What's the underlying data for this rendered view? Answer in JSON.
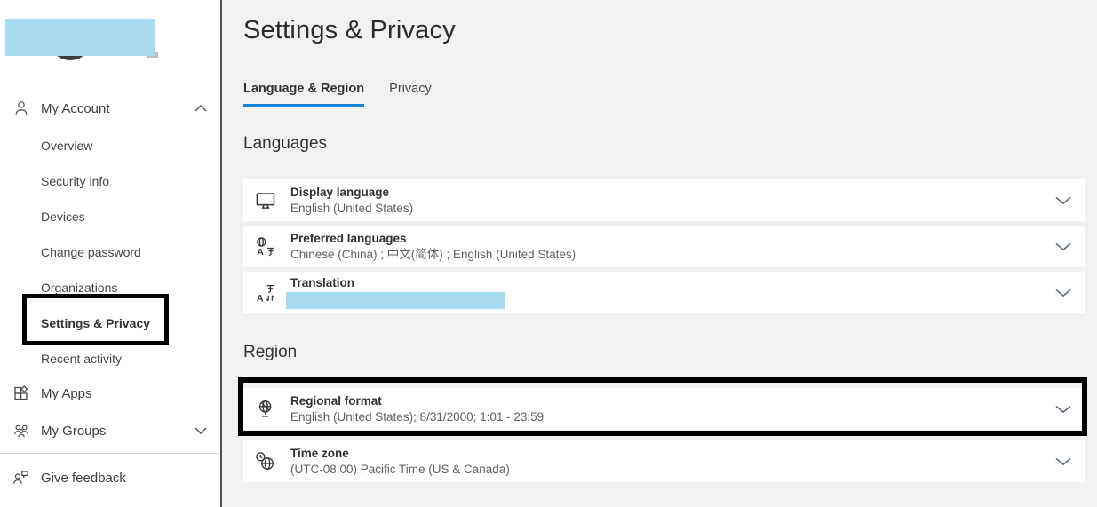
{
  "colors": {
    "accent_blue": "#1784d8",
    "redaction_blue": "#a6dced",
    "annotation_black": "#000000",
    "page_bg": "#f1f1f1",
    "card_bg": "#ffffff"
  },
  "sidebar": {
    "profile_redacted": true,
    "account": {
      "label": "My Account",
      "icon": "person-icon",
      "expanded": true
    },
    "account_items": [
      {
        "label": "Overview",
        "selected": false,
        "highlighted": false
      },
      {
        "label": "Security info",
        "selected": false,
        "highlighted": false
      },
      {
        "label": "Devices",
        "selected": false,
        "highlighted": false
      },
      {
        "label": "Change password",
        "selected": false,
        "highlighted": false
      },
      {
        "label": "Organizations",
        "selected": false,
        "highlighted": false
      },
      {
        "label": "Settings & Privacy",
        "selected": true,
        "highlighted": true
      },
      {
        "label": "Recent activity",
        "selected": false,
        "highlighted": false
      }
    ],
    "apps": {
      "label": "My Apps",
      "icon": "apps-icon"
    },
    "groups": {
      "label": "My Groups",
      "icon": "people-icon",
      "collapsed": true
    },
    "feedback": {
      "label": "Give feedback",
      "icon": "feedback-icon"
    }
  },
  "main": {
    "title": "Settings & Privacy",
    "tabs": [
      {
        "label": "Language & Region",
        "active": true
      },
      {
        "label": "Privacy",
        "active": false
      }
    ],
    "sections": [
      {
        "heading": "Languages",
        "rows": [
          {
            "icon": "display-language-icon",
            "title": "Display language",
            "value": "English (United States)",
            "value_redacted": false,
            "highlighted": false
          },
          {
            "icon": "preferred-languages-icon",
            "title": "Preferred languages",
            "value": "Chinese (China) ; 中文(简体) ; English (United States)",
            "value_redacted": false,
            "highlighted": false
          },
          {
            "icon": "translation-icon",
            "title": "Translation",
            "value": "",
            "value_redacted": true,
            "highlighted": false
          }
        ]
      },
      {
        "heading": "Region",
        "rows": [
          {
            "icon": "regional-format-icon",
            "title": "Regional format",
            "value": "English (United States); 8/31/2000; 1:01 - 23:59",
            "value_redacted": false,
            "highlighted": true
          },
          {
            "icon": "time-zone-icon",
            "title": "Time zone",
            "value": "(UTC-08:00) Pacific Time (US & Canada)",
            "value_redacted": false,
            "highlighted": false
          }
        ]
      }
    ]
  }
}
